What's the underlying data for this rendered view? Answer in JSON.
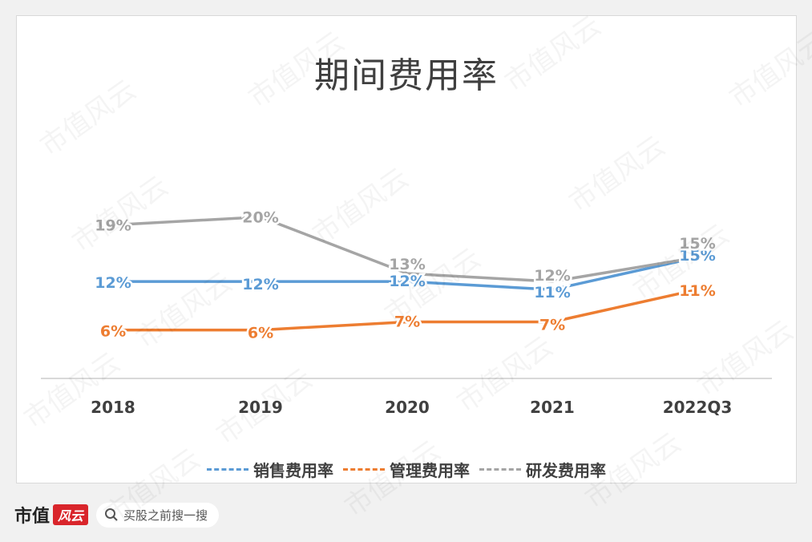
{
  "chart_data": {
    "type": "line",
    "title": "期间费用率",
    "categories": [
      "2018",
      "2019",
      "2020",
      "2021",
      "2022Q3"
    ],
    "series": [
      {
        "name": "销售费用率",
        "color": "#5b9bd5",
        "values": [
          12,
          12,
          12,
          11,
          15
        ],
        "labels": [
          "12%",
          "12%",
          "12%",
          "11%",
          "15%"
        ]
      },
      {
        "name": "管理费用率",
        "color": "#ed7d31",
        "values": [
          6,
          6,
          7,
          7,
          11
        ],
        "labels": [
          "6%",
          "6%",
          "7%",
          "7%",
          "11%"
        ]
      },
      {
        "name": "研发费用率",
        "color": "#a5a5a5",
        "values": [
          19,
          20,
          13,
          12,
          15
        ],
        "labels": [
          "19%",
          "20%",
          "13%",
          "12%",
          "15%"
        ]
      }
    ],
    "ylim": [
      0,
      28
    ],
    "grid": false,
    "legend_position": "bottom"
  },
  "footer": {
    "brand": "市值",
    "brand_seal": "风云",
    "search_text": "买股之前搜一搜"
  },
  "watermark_text": "市值风云"
}
